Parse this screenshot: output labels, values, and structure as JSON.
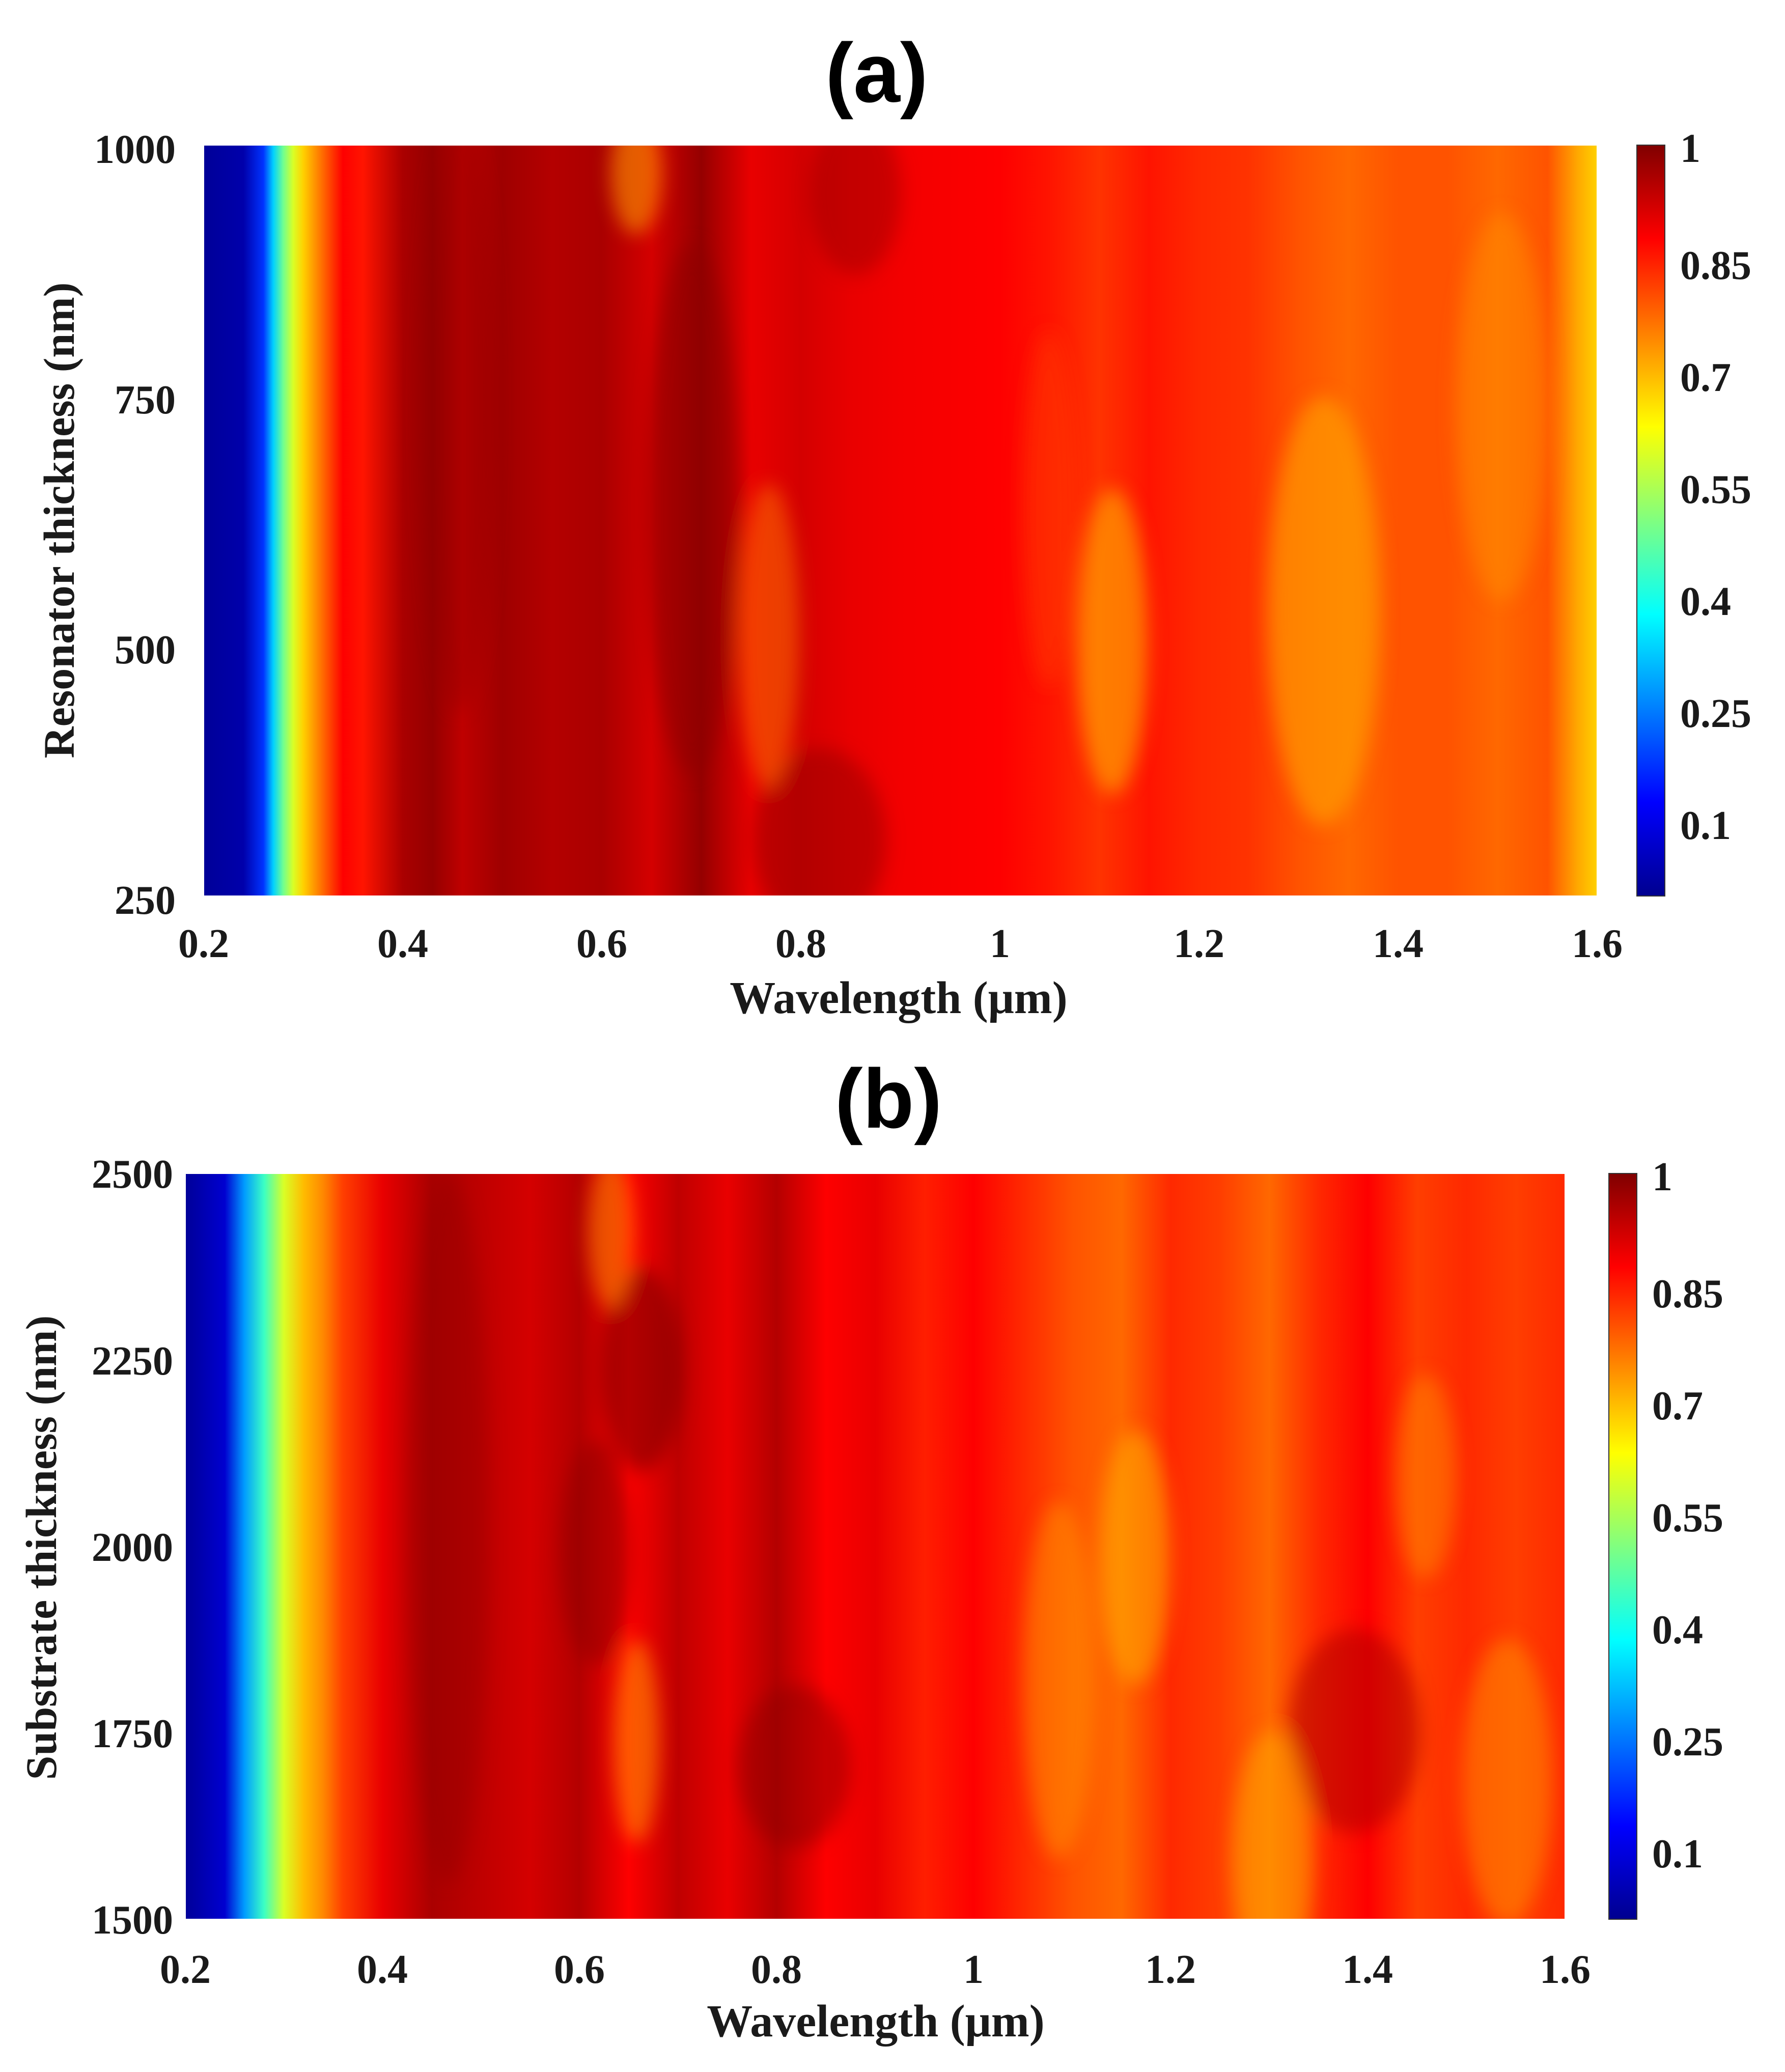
{
  "chart_data": [
    {
      "type": "heatmap",
      "panel_label": "(a)",
      "xlabel": "Wavelength (μm)",
      "ylabel": "Resonator thickness (nm)",
      "xlim": [
        0.2,
        1.6
      ],
      "ylim": [
        250,
        1000
      ],
      "xticks": [
        "0.2",
        "0.4",
        "0.6",
        "0.8",
        "1",
        "1.2",
        "1.4",
        "1.6"
      ],
      "yticks": [
        "250",
        "500",
        "750",
        "1000"
      ],
      "colorbar": {
        "range": [
          0.03,
          1
        ],
        "ticks": [
          "0.1",
          "0.25",
          "0.4",
          "0.55",
          "0.7",
          "0.85",
          "1"
        ]
      },
      "value_profile": {
        "x": [
          0.2,
          0.24,
          0.26,
          0.27,
          0.28,
          0.29,
          0.3,
          0.32,
          0.34,
          0.36,
          0.4,
          0.43,
          0.46,
          0.5,
          0.55,
          0.6,
          0.65,
          0.7,
          0.75,
          0.8,
          0.85,
          0.9,
          1.0,
          1.05,
          1.1,
          1.15,
          1.2,
          1.25,
          1.3,
          1.35,
          1.4,
          1.45,
          1.5,
          1.55,
          1.58,
          1.6
        ],
        "y": [
          0.04,
          0.06,
          0.2,
          0.35,
          0.5,
          0.6,
          0.68,
          0.78,
          0.88,
          0.86,
          0.96,
          0.98,
          0.94,
          0.97,
          0.95,
          0.96,
          0.92,
          0.98,
          0.9,
          0.92,
          0.9,
          0.89,
          0.88,
          0.86,
          0.83,
          0.86,
          0.84,
          0.83,
          0.8,
          0.78,
          0.8,
          0.8,
          0.78,
          0.8,
          0.72,
          0.68
        ]
      }
    },
    {
      "type": "heatmap",
      "panel_label": "(b)",
      "xlabel": "Wavelength (μm)",
      "ylabel": "Substrate thickness (nm)",
      "xlim": [
        0.2,
        1.6
      ],
      "ylim": [
        1500,
        2500
      ],
      "xticks": [
        "0.2",
        "0.4",
        "0.6",
        "0.8",
        "1",
        "1.2",
        "1.4",
        "1.6"
      ],
      "yticks": [
        "1500",
        "1750",
        "2000",
        "2250",
        "2500"
      ],
      "colorbar": {
        "range": [
          0.03,
          1
        ],
        "ticks": [
          "0.1",
          "0.25",
          "0.4",
          "0.55",
          "0.7",
          "0.85",
          "1"
        ]
      },
      "value_profile": {
        "x": [
          0.2,
          0.24,
          0.26,
          0.28,
          0.3,
          0.32,
          0.34,
          0.36,
          0.4,
          0.45,
          0.5,
          0.55,
          0.6,
          0.65,
          0.7,
          0.75,
          0.8,
          0.85,
          0.9,
          0.95,
          1.0,
          1.05,
          1.1,
          1.15,
          1.2,
          1.25,
          1.3,
          1.35,
          1.4,
          1.45,
          1.5,
          1.55,
          1.6
        ],
        "y": [
          0.04,
          0.1,
          0.3,
          0.45,
          0.6,
          0.7,
          0.75,
          0.82,
          0.9,
          0.96,
          0.94,
          0.92,
          0.95,
          0.88,
          0.94,
          0.9,
          0.95,
          0.88,
          0.9,
          0.85,
          0.88,
          0.84,
          0.8,
          0.78,
          0.84,
          0.82,
          0.78,
          0.84,
          0.88,
          0.82,
          0.84,
          0.82,
          0.84
        ]
      }
    }
  ]
}
